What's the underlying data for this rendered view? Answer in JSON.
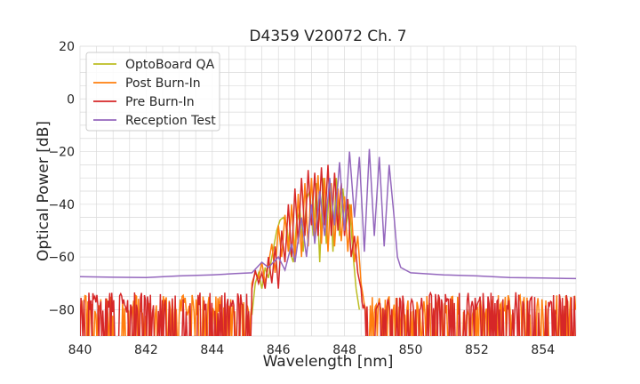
{
  "chart_data": {
    "type": "line",
    "title": "D4359 V20072 Ch. 7",
    "xlabel": "Wavelength [nm]",
    "ylabel": "Optical Power [dB]",
    "xlim": [
      840,
      855
    ],
    "ylim": [
      -90,
      20
    ],
    "xticks": [
      "840",
      "842",
      "844",
      "846",
      "848",
      "850",
      "852",
      "854"
    ],
    "yticks": [
      "20",
      "0",
      "−20",
      "−40",
      "−60",
      "−80"
    ],
    "grid": true,
    "legend_position": "top-left",
    "series": [
      {
        "name": "OptoBoard QA",
        "color": "#bcbd22",
        "noise_floor": -82,
        "floor_range": [
          845.2,
          848.3
        ],
        "points": [
          [
            845.2,
            -82
          ],
          [
            845.3,
            -70
          ],
          [
            845.4,
            -66
          ],
          [
            845.5,
            -72
          ],
          [
            845.6,
            -64
          ],
          [
            845.7,
            -68
          ],
          [
            845.8,
            -60
          ],
          [
            845.95,
            -50
          ],
          [
            846.05,
            -46
          ],
          [
            846.15,
            -45
          ],
          [
            846.25,
            -48
          ],
          [
            846.35,
            -58
          ],
          [
            846.45,
            -62
          ],
          [
            846.55,
            -47
          ],
          [
            846.65,
            -42
          ],
          [
            846.75,
            -58
          ],
          [
            846.85,
            -38
          ],
          [
            846.95,
            -35
          ],
          [
            847.05,
            -52
          ],
          [
            847.15,
            -32
          ],
          [
            847.25,
            -62
          ],
          [
            847.35,
            -30
          ],
          [
            847.45,
            -55
          ],
          [
            847.55,
            -31
          ],
          [
            847.65,
            -58
          ],
          [
            847.75,
            -30
          ],
          [
            847.85,
            -52
          ],
          [
            847.95,
            -34
          ],
          [
            848.05,
            -48
          ],
          [
            848.15,
            -40
          ],
          [
            848.25,
            -58
          ],
          [
            848.35,
            -72
          ],
          [
            848.45,
            -80
          ]
        ]
      },
      {
        "name": "Post Burn-In",
        "color": "#ff7f0e",
        "noise_floor": -80,
        "floor_range": [
          840,
          855
        ],
        "points": [
          [
            845.2,
            -70
          ],
          [
            845.3,
            -66
          ],
          [
            845.4,
            -68
          ],
          [
            845.5,
            -62
          ],
          [
            845.6,
            -70
          ],
          [
            845.8,
            -55
          ],
          [
            845.9,
            -66
          ],
          [
            846.0,
            -48
          ],
          [
            846.1,
            -60
          ],
          [
            846.2,
            -44
          ],
          [
            846.3,
            -58
          ],
          [
            846.4,
            -40
          ],
          [
            846.5,
            -62
          ],
          [
            846.6,
            -36
          ],
          [
            846.7,
            -60
          ],
          [
            846.8,
            -32
          ],
          [
            846.9,
            -56
          ],
          [
            847.0,
            -30
          ],
          [
            847.1,
            -52
          ],
          [
            847.2,
            -29
          ],
          [
            847.3,
            -55
          ],
          [
            847.4,
            -30
          ],
          [
            847.5,
            -58
          ],
          [
            847.6,
            -32
          ],
          [
            847.7,
            -56
          ],
          [
            847.8,
            -34
          ],
          [
            847.9,
            -54
          ],
          [
            848.0,
            -37
          ],
          [
            848.1,
            -58
          ],
          [
            848.2,
            -40
          ],
          [
            848.3,
            -62
          ],
          [
            848.4,
            -52
          ],
          [
            848.5,
            -70
          ],
          [
            848.6,
            -78
          ]
        ]
      },
      {
        "name": "Pre Burn-In",
        "color": "#d62728",
        "noise_floor": -79,
        "floor_range": [
          840,
          855
        ],
        "points": [
          [
            845.2,
            -72
          ],
          [
            845.3,
            -65
          ],
          [
            845.4,
            -70
          ],
          [
            845.5,
            -66
          ],
          [
            845.6,
            -72
          ],
          [
            845.7,
            -60
          ],
          [
            845.8,
            -70
          ],
          [
            845.9,
            -56
          ],
          [
            846.0,
            -72
          ],
          [
            846.1,
            -50
          ],
          [
            846.2,
            -62
          ],
          [
            846.3,
            -40
          ],
          [
            846.4,
            -60
          ],
          [
            846.5,
            -34
          ],
          [
            846.6,
            -55
          ],
          [
            846.7,
            -30
          ],
          [
            846.8,
            -52
          ],
          [
            846.9,
            -27
          ],
          [
            847.0,
            -48
          ],
          [
            847.1,
            -28
          ],
          [
            847.2,
            -52
          ],
          [
            847.3,
            -26
          ],
          [
            847.4,
            -48
          ],
          [
            847.5,
            -25
          ],
          [
            847.6,
            -52
          ],
          [
            847.7,
            -28
          ],
          [
            847.8,
            -50
          ],
          [
            847.9,
            -32
          ],
          [
            848.0,
            -52
          ],
          [
            848.1,
            -38
          ],
          [
            848.2,
            -60
          ],
          [
            848.3,
            -52
          ],
          [
            848.4,
            -66
          ],
          [
            848.5,
            -72
          ]
        ]
      },
      {
        "name": "Reception Test",
        "color": "#9467bd",
        "points": [
          [
            840.0,
            -67.5
          ],
          [
            841.0,
            -67.7
          ],
          [
            842.0,
            -67.8
          ],
          [
            843.0,
            -67.2
          ],
          [
            844.0,
            -66.8
          ],
          [
            844.7,
            -66.3
          ],
          [
            845.2,
            -66
          ],
          [
            845.5,
            -62
          ],
          [
            845.7,
            -64
          ],
          [
            846.0,
            -60
          ],
          [
            846.2,
            -65
          ],
          [
            846.4,
            -55
          ],
          [
            846.5,
            -62
          ],
          [
            846.7,
            -45
          ],
          [
            846.85,
            -60
          ],
          [
            847.0,
            -40
          ],
          [
            847.1,
            -55
          ],
          [
            847.25,
            -35
          ],
          [
            847.4,
            -52
          ],
          [
            847.55,
            -30
          ],
          [
            847.7,
            -48
          ],
          [
            847.85,
            -24
          ],
          [
            848.0,
            -50
          ],
          [
            848.15,
            -20
          ],
          [
            848.3,
            -45
          ],
          [
            848.45,
            -22
          ],
          [
            848.6,
            -58
          ],
          [
            848.75,
            -19
          ],
          [
            848.9,
            -52
          ],
          [
            849.05,
            -22
          ],
          [
            849.2,
            -56
          ],
          [
            849.35,
            -25
          ],
          [
            849.5,
            -45
          ],
          [
            849.6,
            -60
          ],
          [
            849.7,
            -64
          ],
          [
            850.0,
            -66
          ],
          [
            851.0,
            -66.8
          ],
          [
            852.0,
            -67.2
          ],
          [
            853.0,
            -67.8
          ],
          [
            854.0,
            -68
          ],
          [
            855.0,
            -68.2
          ]
        ]
      }
    ]
  }
}
